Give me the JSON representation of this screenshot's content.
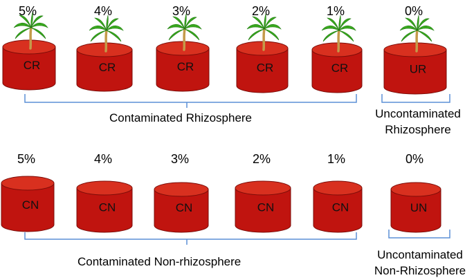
{
  "rows": [
    {
      "id": "rhizosphere",
      "pots": [
        {
          "percent": "5%",
          "label": "CR",
          "plant": true
        },
        {
          "percent": "4%",
          "label": "CR",
          "plant": true
        },
        {
          "percent": "3%",
          "label": "CR",
          "plant": true
        },
        {
          "percent": "2%",
          "label": "CR",
          "plant": true
        },
        {
          "percent": "1%",
          "label": "CR",
          "plant": true
        },
        {
          "percent": "0%",
          "label": "UR",
          "plant": true
        }
      ],
      "group_contaminated": "Contaminated Rhizosphere",
      "group_uncontaminated_line1": "Uncontaminated",
      "group_uncontaminated_line2": "Rhizosphere"
    },
    {
      "id": "non-rhizosphere",
      "pots": [
        {
          "percent": "5%",
          "label": "CN",
          "plant": false
        },
        {
          "percent": "4%",
          "label": "CN",
          "plant": false
        },
        {
          "percent": "3%",
          "label": "CN",
          "plant": false
        },
        {
          "percent": "2%",
          "label": "CN",
          "plant": false
        },
        {
          "percent": "1%",
          "label": "CN",
          "plant": false
        },
        {
          "percent": "0%",
          "label": "UN",
          "plant": false
        }
      ],
      "group_contaminated": "Contaminated Non-rhizosphere",
      "group_uncontaminated_line1": "Uncontaminated",
      "group_uncontaminated_line2": "Non-Rhizosphere"
    }
  ],
  "colors": {
    "pot_body": "#c0140f",
    "pot_top": "#d8301f",
    "pot_edge": "#7a0c08",
    "bracket": "#5b8fd6",
    "leaf": "#39a81e",
    "trunk": "#c49a4a"
  },
  "icons": {
    "plant": "palm-tree-icon"
  }
}
